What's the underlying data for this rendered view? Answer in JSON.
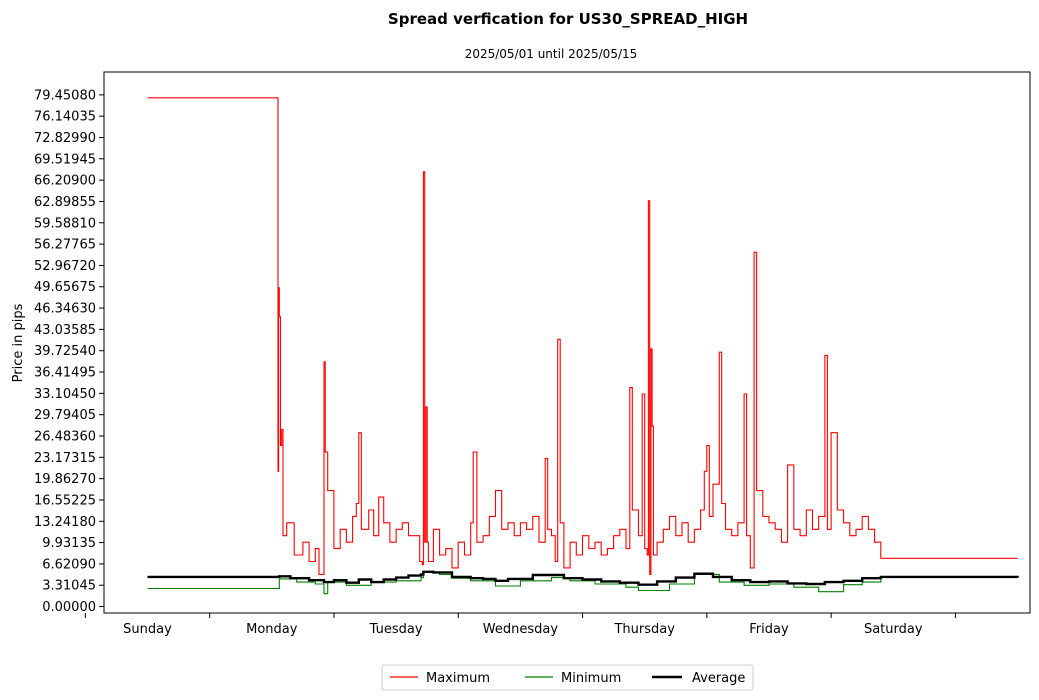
{
  "chart_data": {
    "type": "line",
    "title": "Spread verfication for US30_SPREAD_HIGH",
    "subtitle": "2025/05/01 until 2025/05/15",
    "xlabel": "",
    "ylabel": "Price in pips",
    "ylim": [
      -1.0,
      83.0
    ],
    "xlim": [
      -0.35,
      7.1
    ],
    "grid": false,
    "legend_placement": "bottom-center",
    "yticks": [
      "0.00000",
      "3.31045",
      "6.62090",
      "9.93135",
      "13.24180",
      "16.55225",
      "19.86270",
      "23.17315",
      "26.48360",
      "29.79405",
      "33.10450",
      "36.41495",
      "39.72540",
      "43.03585",
      "46.34630",
      "49.65675",
      "52.96720",
      "56.27765",
      "59.58810",
      "62.89855",
      "66.20900",
      "69.51945",
      "72.82990",
      "76.14035",
      "79.45080"
    ],
    "categories": [
      "Sunday",
      "Monday",
      "Tuesday",
      "Wednesday",
      "Thursday",
      "Friday",
      "Saturday"
    ],
    "series": [
      {
        "name": "Maximum",
        "color": "#ff0000",
        "points": [
          [
            0.0,
            79.0
          ],
          [
            1.04,
            79.0
          ],
          [
            1.05,
            21.0
          ],
          [
            1.055,
            49.5
          ],
          [
            1.06,
            45.0
          ],
          [
            1.07,
            25.0
          ],
          [
            1.08,
            27.5
          ],
          [
            1.09,
            11.0
          ],
          [
            1.12,
            13.0
          ],
          [
            1.18,
            8.0
          ],
          [
            1.25,
            10.0
          ],
          [
            1.3,
            7.0
          ],
          [
            1.35,
            9.0
          ],
          [
            1.38,
            5.0
          ],
          [
            1.42,
            38.0
          ],
          [
            1.43,
            24.0
          ],
          [
            1.45,
            18.0
          ],
          [
            1.5,
            9.0
          ],
          [
            1.55,
            12.0
          ],
          [
            1.6,
            10.0
          ],
          [
            1.65,
            14.0
          ],
          [
            1.68,
            16.0
          ],
          [
            1.7,
            27.0
          ],
          [
            1.72,
            12.0
          ],
          [
            1.78,
            15.0
          ],
          [
            1.82,
            11.0
          ],
          [
            1.86,
            17.0
          ],
          [
            1.9,
            13.0
          ],
          [
            1.95,
            10.0
          ],
          [
            2.0,
            12.0
          ],
          [
            2.05,
            13.0
          ],
          [
            2.1,
            11.0
          ],
          [
            2.15,
            11.0
          ],
          [
            2.19,
            7.0
          ],
          [
            2.21,
            6.5
          ],
          [
            2.22,
            67.5
          ],
          [
            2.23,
            10.0
          ],
          [
            2.24,
            31.0
          ],
          [
            2.25,
            10.0
          ],
          [
            2.26,
            7.0
          ],
          [
            2.3,
            12.0
          ],
          [
            2.35,
            8.0
          ],
          [
            2.4,
            9.0
          ],
          [
            2.45,
            6.0
          ],
          [
            2.5,
            10.0
          ],
          [
            2.55,
            8.0
          ],
          [
            2.6,
            13.0
          ],
          [
            2.62,
            24.0
          ],
          [
            2.65,
            10.0
          ],
          [
            2.7,
            11.0
          ],
          [
            2.75,
            14.0
          ],
          [
            2.8,
            18.0
          ],
          [
            2.85,
            12.0
          ],
          [
            2.9,
            13.0
          ],
          [
            2.95,
            11.0
          ],
          [
            3.0,
            13.0
          ],
          [
            3.05,
            12.0
          ],
          [
            3.1,
            14.0
          ],
          [
            3.15,
            10.0
          ],
          [
            3.2,
            23.0
          ],
          [
            3.22,
            12.0
          ],
          [
            3.25,
            11.0
          ],
          [
            3.28,
            7.0
          ],
          [
            3.3,
            41.5
          ],
          [
            3.32,
            13.0
          ],
          [
            3.35,
            6.0
          ],
          [
            3.4,
            10.0
          ],
          [
            3.45,
            8.0
          ],
          [
            3.5,
            11.0
          ],
          [
            3.55,
            9.0
          ],
          [
            3.6,
            10.0
          ],
          [
            3.65,
            8.0
          ],
          [
            3.7,
            9.0
          ],
          [
            3.75,
            11.0
          ],
          [
            3.8,
            12.0
          ],
          [
            3.85,
            9.0
          ],
          [
            3.88,
            34.0
          ],
          [
            3.9,
            15.0
          ],
          [
            3.95,
            11.0
          ],
          [
            3.98,
            33.0
          ],
          [
            4.0,
            9.0
          ],
          [
            4.02,
            8.0
          ],
          [
            4.03,
            63.0
          ],
          [
            4.04,
            5.0
          ],
          [
            4.05,
            40.0
          ],
          [
            4.06,
            28.0
          ],
          [
            4.07,
            8.0
          ],
          [
            4.1,
            10.0
          ],
          [
            4.15,
            12.0
          ],
          [
            4.2,
            14.0
          ],
          [
            4.25,
            11.0
          ],
          [
            4.3,
            13.0
          ],
          [
            4.35,
            10.0
          ],
          [
            4.4,
            12.0
          ],
          [
            4.45,
            15.0
          ],
          [
            4.48,
            21.0
          ],
          [
            4.5,
            25.0
          ],
          [
            4.52,
            14.0
          ],
          [
            4.55,
            19.0
          ],
          [
            4.6,
            39.5
          ],
          [
            4.62,
            16.0
          ],
          [
            4.65,
            12.0
          ],
          [
            4.7,
            11.0
          ],
          [
            4.75,
            13.0
          ],
          [
            4.8,
            33.0
          ],
          [
            4.82,
            11.0
          ],
          [
            4.85,
            6.0
          ],
          [
            4.88,
            55.0
          ],
          [
            4.9,
            18.0
          ],
          [
            4.95,
            14.0
          ],
          [
            5.0,
            13.0
          ],
          [
            5.05,
            12.0
          ],
          [
            5.1,
            10.0
          ],
          [
            5.15,
            22.0
          ],
          [
            5.2,
            12.0
          ],
          [
            5.25,
            11.0
          ],
          [
            5.3,
            15.0
          ],
          [
            5.35,
            12.0
          ],
          [
            5.4,
            14.0
          ],
          [
            5.45,
            39.0
          ],
          [
            5.47,
            12.0
          ],
          [
            5.5,
            27.0
          ],
          [
            5.55,
            15.0
          ],
          [
            5.6,
            13.0
          ],
          [
            5.65,
            11.0
          ],
          [
            5.7,
            12.0
          ],
          [
            5.75,
            14.0
          ],
          [
            5.8,
            12.0
          ],
          [
            5.85,
            10.0
          ],
          [
            5.9,
            7.5
          ],
          [
            7.0,
            7.5
          ]
        ]
      },
      {
        "name": "Minimum",
        "color": "#008000",
        "points": [
          [
            0.0,
            2.8
          ],
          [
            1.04,
            2.8
          ],
          [
            1.06,
            4.3
          ],
          [
            1.2,
            3.8
          ],
          [
            1.35,
            3.5
          ],
          [
            1.42,
            2.0
          ],
          [
            1.45,
            3.8
          ],
          [
            1.6,
            3.3
          ],
          [
            1.8,
            3.8
          ],
          [
            2.0,
            4.0
          ],
          [
            2.2,
            4.5
          ],
          [
            2.22,
            5.3
          ],
          [
            2.35,
            5.0
          ],
          [
            2.45,
            4.4
          ],
          [
            2.6,
            4.0
          ],
          [
            2.8,
            3.2
          ],
          [
            3.0,
            4.0
          ],
          [
            3.25,
            4.5
          ],
          [
            3.4,
            4.0
          ],
          [
            3.6,
            3.5
          ],
          [
            3.85,
            3.0
          ],
          [
            3.95,
            2.5
          ],
          [
            4.2,
            3.5
          ],
          [
            4.4,
            5.0
          ],
          [
            4.6,
            3.8
          ],
          [
            4.8,
            3.3
          ],
          [
            5.0,
            3.5
          ],
          [
            5.2,
            3.0
          ],
          [
            5.4,
            2.3
          ],
          [
            5.6,
            3.4
          ],
          [
            5.75,
            3.8
          ],
          [
            5.9,
            4.6
          ],
          [
            7.0,
            4.5
          ]
        ]
      },
      {
        "name": "Average",
        "color": "#000000",
        "points": [
          [
            0.0,
            4.6
          ],
          [
            1.04,
            4.6
          ],
          [
            1.06,
            4.7
          ],
          [
            1.15,
            4.4
          ],
          [
            1.3,
            4.1
          ],
          [
            1.42,
            3.8
          ],
          [
            1.5,
            4.1
          ],
          [
            1.6,
            3.7
          ],
          [
            1.7,
            4.2
          ],
          [
            1.8,
            3.8
          ],
          [
            1.9,
            4.2
          ],
          [
            2.0,
            4.5
          ],
          [
            2.1,
            4.8
          ],
          [
            2.2,
            5.0
          ],
          [
            2.22,
            5.4
          ],
          [
            2.3,
            5.3
          ],
          [
            2.45,
            4.6
          ],
          [
            2.6,
            4.4
          ],
          [
            2.7,
            4.3
          ],
          [
            2.8,
            4.0
          ],
          [
            2.9,
            4.3
          ],
          [
            3.0,
            4.3
          ],
          [
            3.1,
            4.9
          ],
          [
            3.25,
            4.9
          ],
          [
            3.35,
            4.4
          ],
          [
            3.5,
            4.2
          ],
          [
            3.65,
            3.9
          ],
          [
            3.8,
            3.7
          ],
          [
            3.95,
            3.4
          ],
          [
            4.1,
            3.9
          ],
          [
            4.25,
            4.5
          ],
          [
            4.4,
            5.1
          ],
          [
            4.55,
            4.6
          ],
          [
            4.7,
            4.1
          ],
          [
            4.85,
            3.8
          ],
          [
            5.0,
            3.9
          ],
          [
            5.15,
            3.6
          ],
          [
            5.3,
            3.5
          ],
          [
            5.45,
            3.8
          ],
          [
            5.6,
            4.0
          ],
          [
            5.75,
            4.4
          ],
          [
            5.9,
            4.6
          ],
          [
            7.0,
            4.5
          ]
        ]
      }
    ]
  },
  "legend": {
    "items": [
      {
        "label": "Maximum",
        "color": "#ff0000"
      },
      {
        "label": "Minimum",
        "color": "#008000"
      },
      {
        "label": "Average",
        "color": "#000000"
      }
    ]
  }
}
